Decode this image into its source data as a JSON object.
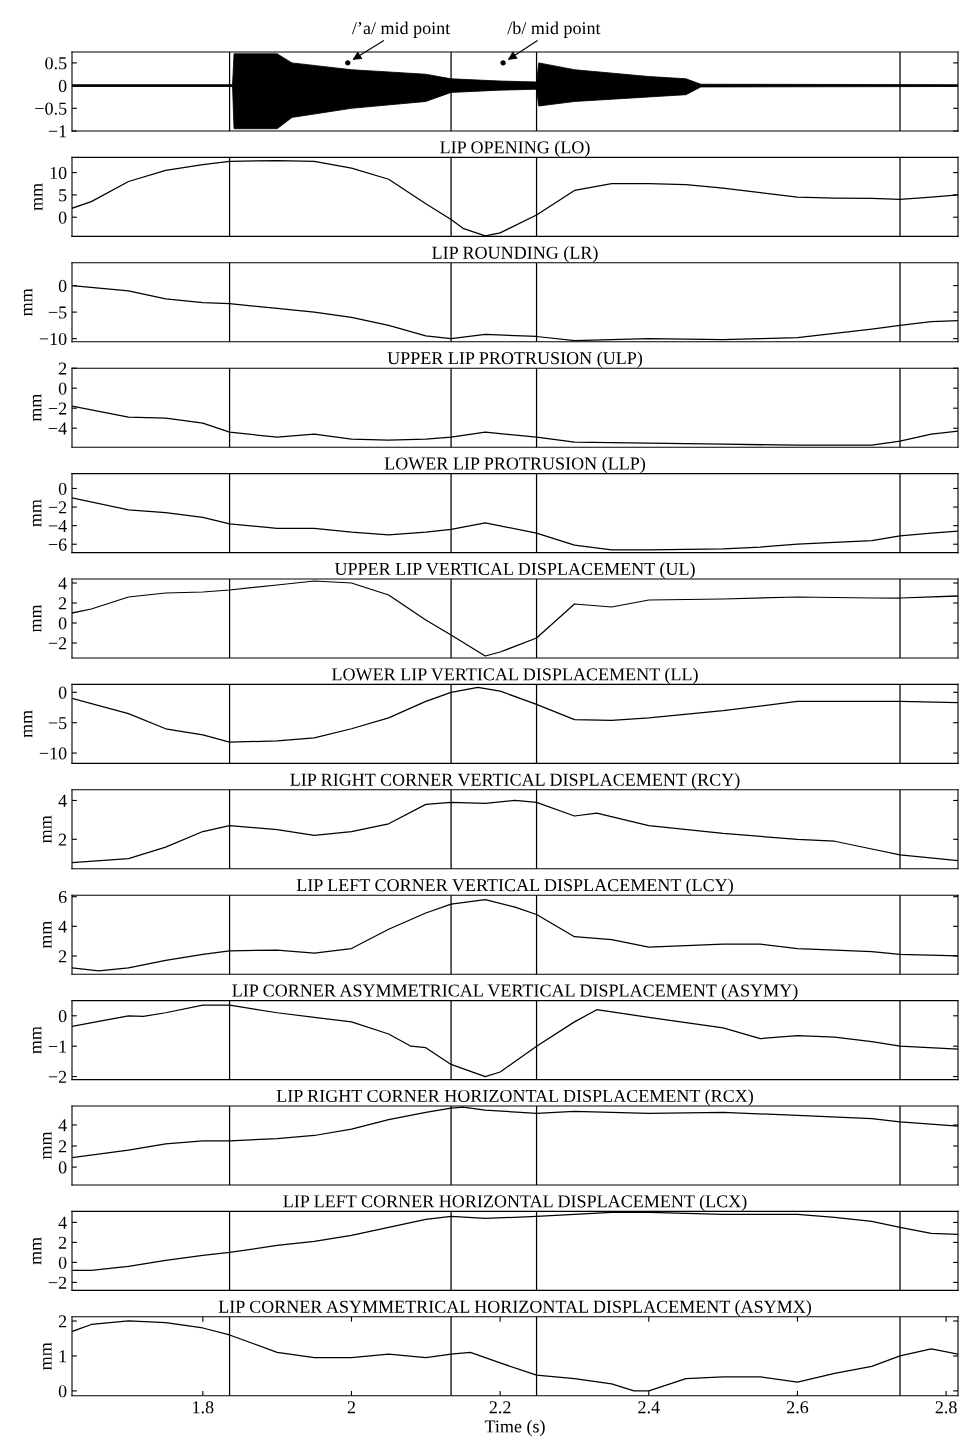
{
  "chart_data": [
    {
      "type": "line",
      "xlim": [
        1.624,
        2.816
      ],
      "ylim": [
        -1,
        0.74
      ],
      "yticks": [
        {
          "value": 0.5,
          "label": "0.5"
        },
        0,
        {
          "value": -0.5,
          "label": "−0.5"
        },
        {
          "value": -1,
          "label": "−1"
        }
      ],
      "tick_labels": "y",
      "grid": false,
      "legend": false,
      "annotations": [
        {
          "text": "/’a/ mid point",
          "x": 1.995,
          "y": 0.5
        },
        {
          "text": "/b/ mid point",
          "x": 2.204,
          "y": 0.5
        }
      ],
      "ref_lines": [
        {
          "axis": "x",
          "value": 1.836,
          "color": "#000000"
        },
        {
          "axis": "x",
          "value": 2.134,
          "color": "#000000"
        },
        {
          "axis": "x",
          "value": 2.249,
          "color": "#000000"
        },
        {
          "axis": "x",
          "value": 2.738,
          "color": "#000000"
        }
      ],
      "series": [
        {
          "type": "line",
          "color": "#000000",
          "x": [
            1.624,
            1.84,
            1.842,
            1.9,
            1.92,
            2.0,
            2.1,
            2.134,
            2.2,
            2.249,
            2.252,
            2.3,
            2.4,
            2.45,
            2.47,
            2.816
          ],
          "values": [
            0,
            0,
            0,
            0,
            0,
            0,
            0,
            0,
            0,
            0,
            0,
            0,
            0,
            0,
            0,
            0
          ],
          "lower": [
            -0.02,
            -0.02,
            -0.95,
            -0.95,
            -0.7,
            -0.5,
            -0.35,
            -0.15,
            -0.1,
            -0.08,
            -0.45,
            -0.35,
            -0.25,
            -0.2,
            -0.03,
            -0.02
          ],
          "upper": [
            0.02,
            0.02,
            0.7,
            0.7,
            0.5,
            0.35,
            0.25,
            0.15,
            0.1,
            0.08,
            0.5,
            0.35,
            0.2,
            0.15,
            0.03,
            0.02
          ]
        },
        {
          "type": "scatter",
          "color": "#000000",
          "x": [
            1.995,
            2.204
          ],
          "values": [
            0.5,
            0.5
          ]
        }
      ]
    },
    {
      "type": "line",
      "title": "LIP OPENING (LO)",
      "ylabel": "mm",
      "xlim": [
        1.624,
        2.816
      ],
      "ylim": [
        -4.3,
        13.4
      ],
      "yticks": [
        10,
        5,
        0
      ],
      "tick_labels": "y",
      "grid": false,
      "legend": false,
      "ref_lines": [
        {
          "axis": "x",
          "value": 1.836,
          "color": "#000000"
        },
        {
          "axis": "x",
          "value": 2.134,
          "color": "#000000"
        },
        {
          "axis": "x",
          "value": 2.249,
          "color": "#000000"
        },
        {
          "axis": "x",
          "value": 2.738,
          "color": "#000000"
        }
      ],
      "series": [
        {
          "type": "line",
          "color": "#000000",
          "x": [
            1.624,
            1.65,
            1.7,
            1.75,
            1.8,
            1.836,
            1.9,
            1.95,
            2.0,
            2.05,
            2.1,
            2.134,
            2.15,
            2.18,
            2.2,
            2.249,
            2.3,
            2.35,
            2.4,
            2.45,
            2.5,
            2.55,
            2.6,
            2.65,
            2.7,
            2.738,
            2.78,
            2.816
          ],
          "values": [
            2,
            3.5,
            8,
            10.5,
            11.8,
            12.5,
            12.7,
            12.5,
            11,
            8.5,
            3,
            -0.5,
            -2.5,
            -4.2,
            -3.5,
            0.5,
            6,
            7.5,
            7.5,
            7.3,
            6.5,
            5.5,
            4.5,
            4.3,
            4.2,
            4,
            4.5,
            5
          ]
        }
      ]
    },
    {
      "type": "line",
      "title": "LIP ROUNDING (LR)",
      "ylabel": "mm",
      "xlim": [
        1.624,
        2.816
      ],
      "ylim": [
        -10.6,
        4.3
      ],
      "yticks": [
        0,
        {
          "value": -5,
          "label": "−5"
        },
        {
          "value": -10,
          "label": "−10"
        }
      ],
      "tick_labels": "y",
      "grid": false,
      "legend": false,
      "ref_lines": [
        {
          "axis": "x",
          "value": 1.836,
          "color": "#000000"
        },
        {
          "axis": "x",
          "value": 2.134,
          "color": "#000000"
        },
        {
          "axis": "x",
          "value": 2.249,
          "color": "#000000"
        },
        {
          "axis": "x",
          "value": 2.738,
          "color": "#000000"
        }
      ],
      "series": [
        {
          "type": "line",
          "color": "#000000",
          "x": [
            1.624,
            1.7,
            1.75,
            1.8,
            1.836,
            1.9,
            1.95,
            2.0,
            2.05,
            2.1,
            2.134,
            2.18,
            2.249,
            2.3,
            2.4,
            2.5,
            2.55,
            2.6,
            2.65,
            2.7,
            2.738,
            2.78,
            2.816
          ],
          "values": [
            0,
            -1,
            -2.5,
            -3.2,
            -3.4,
            -4.3,
            -5,
            -6,
            -7.5,
            -9.5,
            -10,
            -9.2,
            -9.6,
            -10.4,
            -10,
            -10.2,
            -10,
            -9.8,
            -9,
            -8.2,
            -7.5,
            -6.8,
            -6.6
          ]
        }
      ]
    },
    {
      "type": "line",
      "title": "UPPER LIP PROTRUSION (ULP)",
      "ylabel": "mm",
      "xlim": [
        1.624,
        2.816
      ],
      "ylim": [
        -5.9,
        2
      ],
      "yticks": [
        2,
        0,
        {
          "value": -2,
          "label": "−2"
        },
        {
          "value": -4,
          "label": "−4"
        }
      ],
      "tick_labels": "y",
      "grid": false,
      "legend": false,
      "ref_lines": [
        {
          "axis": "x",
          "value": 1.836,
          "color": "#000000"
        },
        {
          "axis": "x",
          "value": 2.134,
          "color": "#000000"
        },
        {
          "axis": "x",
          "value": 2.249,
          "color": "#000000"
        },
        {
          "axis": "x",
          "value": 2.738,
          "color": "#000000"
        }
      ],
      "series": [
        {
          "type": "line",
          "color": "#000000",
          "x": [
            1.624,
            1.7,
            1.75,
            1.8,
            1.836,
            1.9,
            1.95,
            2.0,
            2.05,
            2.1,
            2.134,
            2.18,
            2.249,
            2.3,
            2.4,
            2.5,
            2.6,
            2.7,
            2.738,
            2.78,
            2.816
          ],
          "values": [
            -1.8,
            -2.9,
            -3,
            -3.5,
            -4.4,
            -4.9,
            -4.6,
            -5.1,
            -5.2,
            -5.1,
            -4.9,
            -4.4,
            -4.9,
            -5.4,
            -5.5,
            -5.6,
            -5.7,
            -5.7,
            -5.3,
            -4.6,
            -4.3
          ]
        }
      ]
    },
    {
      "type": "line",
      "title": "LOWER LIP PROTRUSION (LLP)",
      "ylabel": "mm",
      "xlim": [
        1.624,
        2.816
      ],
      "ylim": [
        -6.9,
        1.6
      ],
      "yticks": [
        0,
        {
          "value": -2,
          "label": "−2"
        },
        {
          "value": -4,
          "label": "−4"
        },
        {
          "value": -6,
          "label": "−6"
        }
      ],
      "tick_labels": "y",
      "grid": false,
      "legend": false,
      "ref_lines": [
        {
          "axis": "x",
          "value": 1.836,
          "color": "#000000"
        },
        {
          "axis": "x",
          "value": 2.134,
          "color": "#000000"
        },
        {
          "axis": "x",
          "value": 2.249,
          "color": "#000000"
        },
        {
          "axis": "x",
          "value": 2.738,
          "color": "#000000"
        }
      ],
      "series": [
        {
          "type": "line",
          "color": "#000000",
          "x": [
            1.624,
            1.7,
            1.75,
            1.8,
            1.836,
            1.9,
            1.95,
            2.0,
            2.05,
            2.1,
            2.134,
            2.18,
            2.249,
            2.3,
            2.35,
            2.4,
            2.5,
            2.55,
            2.6,
            2.7,
            2.738,
            2.78,
            2.816
          ],
          "values": [
            -1,
            -2.3,
            -2.6,
            -3.1,
            -3.8,
            -4.3,
            -4.3,
            -4.7,
            -5,
            -4.7,
            -4.4,
            -3.7,
            -4.8,
            -6.1,
            -6.6,
            -6.6,
            -6.5,
            -6.3,
            -6,
            -5.6,
            -5.1,
            -4.8,
            -4.6
          ]
        }
      ]
    },
    {
      "type": "line",
      "title": "UPPER LIP VERTICAL DISPLACEMENT (UL)",
      "ylabel": "mm",
      "xlim": [
        1.624,
        2.816
      ],
      "ylim": [
        -3.5,
        4.4
      ],
      "yticks": [
        4,
        2,
        0,
        {
          "value": -2,
          "label": "−2"
        }
      ],
      "tick_labels": "y",
      "grid": false,
      "legend": false,
      "ref_lines": [
        {
          "axis": "x",
          "value": 1.836,
          "color": "#000000"
        },
        {
          "axis": "x",
          "value": 2.134,
          "color": "#000000"
        },
        {
          "axis": "x",
          "value": 2.249,
          "color": "#000000"
        },
        {
          "axis": "x",
          "value": 2.738,
          "color": "#000000"
        }
      ],
      "series": [
        {
          "type": "line",
          "color": "#000000",
          "x": [
            1.624,
            1.65,
            1.7,
            1.75,
            1.8,
            1.836,
            1.9,
            1.95,
            2.0,
            2.05,
            2.1,
            2.134,
            2.18,
            2.2,
            2.249,
            2.3,
            2.35,
            2.4,
            2.5,
            2.6,
            2.7,
            2.738,
            2.816
          ],
          "values": [
            1,
            1.4,
            2.6,
            3,
            3.1,
            3.3,
            3.8,
            4.2,
            4,
            2.8,
            0.3,
            -1.2,
            -3.3,
            -2.9,
            -1.5,
            1.9,
            1.6,
            2.3,
            2.4,
            2.6,
            2.5,
            2.5,
            2.7
          ]
        }
      ]
    },
    {
      "type": "line",
      "title": "LOWER LIP VERTICAL DISPLACEMENT (LL)",
      "ylabel": "mm",
      "xlim": [
        1.624,
        2.816
      ],
      "ylim": [
        -11.7,
        1.3
      ],
      "yticks": [
        0,
        {
          "value": -5,
          "label": "−5"
        },
        {
          "value": -10,
          "label": "−10"
        }
      ],
      "tick_labels": "y",
      "grid": false,
      "legend": false,
      "ref_lines": [
        {
          "axis": "x",
          "value": 1.836,
          "color": "#000000"
        },
        {
          "axis": "x",
          "value": 2.134,
          "color": "#000000"
        },
        {
          "axis": "x",
          "value": 2.249,
          "color": "#000000"
        },
        {
          "axis": "x",
          "value": 2.738,
          "color": "#000000"
        }
      ],
      "series": [
        {
          "type": "line",
          "color": "#000000",
          "x": [
            1.624,
            1.7,
            1.75,
            1.8,
            1.836,
            1.9,
            1.95,
            2.0,
            2.05,
            2.1,
            2.134,
            2.17,
            2.2,
            2.249,
            2.3,
            2.35,
            2.4,
            2.5,
            2.6,
            2.65,
            2.738,
            2.816
          ],
          "values": [
            -1,
            -3.5,
            -6,
            -7,
            -8.2,
            -8,
            -7.5,
            -6,
            -4.2,
            -1.5,
            0,
            0.8,
            0.2,
            -2,
            -4.5,
            -4.6,
            -4.2,
            -3,
            -1.5,
            -1.5,
            -1.5,
            -1.7
          ]
        }
      ]
    },
    {
      "type": "line",
      "title": "LIP RIGHT CORNER VERTICAL DISPLACEMENT (RCY)",
      "ylabel": "mm",
      "xlim": [
        1.624,
        2.816
      ],
      "ylim": [
        0.48,
        4.55
      ],
      "yticks": [
        4,
        2
      ],
      "tick_labels": "y",
      "grid": false,
      "legend": false,
      "ref_lines": [
        {
          "axis": "x",
          "value": 1.836,
          "color": "#000000"
        },
        {
          "axis": "x",
          "value": 2.134,
          "color": "#000000"
        },
        {
          "axis": "x",
          "value": 2.249,
          "color": "#000000"
        },
        {
          "axis": "x",
          "value": 2.738,
          "color": "#000000"
        }
      ],
      "series": [
        {
          "type": "line",
          "color": "#000000",
          "x": [
            1.624,
            1.7,
            1.75,
            1.8,
            1.836,
            1.9,
            1.95,
            2.0,
            2.05,
            2.1,
            2.134,
            2.18,
            2.22,
            2.249,
            2.3,
            2.33,
            2.4,
            2.5,
            2.6,
            2.65,
            2.7,
            2.738,
            2.816
          ],
          "values": [
            0.8,
            1,
            1.6,
            2.4,
            2.7,
            2.5,
            2.2,
            2.4,
            2.8,
            3.8,
            3.9,
            3.85,
            4,
            3.9,
            3.2,
            3.35,
            2.7,
            2.3,
            2,
            1.9,
            1.5,
            1.2,
            0.9
          ]
        }
      ]
    },
    {
      "type": "line",
      "title": "LIP LEFT CORNER VERTICAL DISPLACEMENT (LCY)",
      "ylabel": "mm",
      "xlim": [
        1.624,
        2.816
      ],
      "ylim": [
        0.77,
        6.1
      ],
      "yticks": [
        6,
        4,
        2
      ],
      "tick_labels": "y",
      "grid": false,
      "legend": false,
      "ref_lines": [
        {
          "axis": "x",
          "value": 1.836,
          "color": "#000000"
        },
        {
          "axis": "x",
          "value": 2.134,
          "color": "#000000"
        },
        {
          "axis": "x",
          "value": 2.249,
          "color": "#000000"
        },
        {
          "axis": "x",
          "value": 2.738,
          "color": "#000000"
        }
      ],
      "series": [
        {
          "type": "line",
          "color": "#000000",
          "x": [
            1.624,
            1.66,
            1.7,
            1.75,
            1.8,
            1.836,
            1.9,
            1.95,
            2.0,
            2.05,
            2.1,
            2.134,
            2.18,
            2.22,
            2.249,
            2.3,
            2.35,
            2.4,
            2.5,
            2.55,
            2.6,
            2.7,
            2.738,
            2.816
          ],
          "values": [
            1.2,
            1,
            1.2,
            1.7,
            2.1,
            2.35,
            2.4,
            2.2,
            2.5,
            3.8,
            4.9,
            5.5,
            5.8,
            5.3,
            4.8,
            3.3,
            3.1,
            2.6,
            2.8,
            2.8,
            2.5,
            2.3,
            2.1,
            2
          ]
        }
      ]
    },
    {
      "type": "line",
      "title": "LIP CORNER ASYMMETRICAL VERTICAL DISPLACEMENT (ASYMY)",
      "ylabel": "mm",
      "xlim": [
        1.624,
        2.816
      ],
      "ylim": [
        -2.1,
        0.5
      ],
      "yticks": [
        0,
        {
          "value": -1,
          "label": "−1"
        },
        {
          "value": -2,
          "label": "−2"
        }
      ],
      "tick_labels": "y",
      "grid": false,
      "legend": false,
      "ref_lines": [
        {
          "axis": "x",
          "value": 1.836,
          "color": "#000000"
        },
        {
          "axis": "x",
          "value": 2.134,
          "color": "#000000"
        },
        {
          "axis": "x",
          "value": 2.249,
          "color": "#000000"
        },
        {
          "axis": "x",
          "value": 2.738,
          "color": "#000000"
        }
      ],
      "series": [
        {
          "type": "line",
          "color": "#000000",
          "x": [
            1.624,
            1.7,
            1.72,
            1.75,
            1.8,
            1.836,
            1.9,
            1.95,
            2.0,
            2.05,
            2.08,
            2.1,
            2.134,
            2.18,
            2.2,
            2.249,
            2.3,
            2.33,
            2.4,
            2.5,
            2.55,
            2.6,
            2.65,
            2.7,
            2.738,
            2.816
          ],
          "values": [
            -0.35,
            0,
            -0.02,
            0.1,
            0.35,
            0.35,
            0.1,
            -0.05,
            -0.2,
            -0.6,
            -1,
            -1.05,
            -1.6,
            -2,
            -1.85,
            -1,
            -0.2,
            0.2,
            -0.05,
            -0.4,
            -0.75,
            -0.65,
            -0.7,
            -0.85,
            -1,
            -1.1
          ]
        }
      ]
    },
    {
      "type": "line",
      "title": "LIP RIGHT CORNER HORIZONTAL DISPLACEMENT (RCX)",
      "ylabel": "mm",
      "xlim": [
        1.624,
        2.816
      ],
      "ylim": [
        -1.7,
        5.8
      ],
      "yticks": [
        4,
        2,
        0
      ],
      "tick_labels": "y",
      "grid": false,
      "legend": false,
      "ref_lines": [
        {
          "axis": "x",
          "value": 1.836,
          "color": "#000000"
        },
        {
          "axis": "x",
          "value": 2.134,
          "color": "#000000"
        },
        {
          "axis": "x",
          "value": 2.249,
          "color": "#000000"
        },
        {
          "axis": "x",
          "value": 2.738,
          "color": "#000000"
        }
      ],
      "series": [
        {
          "type": "line",
          "color": "#000000",
          "x": [
            1.624,
            1.7,
            1.75,
            1.8,
            1.836,
            1.9,
            1.95,
            2.0,
            2.05,
            2.1,
            2.134,
            2.15,
            2.18,
            2.249,
            2.3,
            2.35,
            2.4,
            2.5,
            2.6,
            2.7,
            2.738,
            2.816
          ],
          "values": [
            0.9,
            1.6,
            2.2,
            2.5,
            2.5,
            2.7,
            3,
            3.6,
            4.5,
            5.2,
            5.6,
            5.7,
            5.4,
            5.1,
            5.3,
            5.2,
            5.1,
            5.2,
            4.9,
            4.6,
            4.3,
            3.9
          ]
        }
      ]
    },
    {
      "type": "line",
      "title": "LIP LEFT CORNER HORIZONTAL DISPLACEMENT (LCX)",
      "ylabel": "mm",
      "xlim": [
        1.624,
        2.816
      ],
      "ylim": [
        -2.8,
        5.1
      ],
      "yticks": [
        4,
        2,
        0,
        {
          "value": -2,
          "label": "−2"
        }
      ],
      "tick_labels": "y",
      "grid": false,
      "legend": false,
      "ref_lines": [
        {
          "axis": "x",
          "value": 1.836,
          "color": "#000000"
        },
        {
          "axis": "x",
          "value": 2.134,
          "color": "#000000"
        },
        {
          "axis": "x",
          "value": 2.249,
          "color": "#000000"
        },
        {
          "axis": "x",
          "value": 2.738,
          "color": "#000000"
        }
      ],
      "series": [
        {
          "type": "line",
          "color": "#000000",
          "x": [
            1.624,
            1.65,
            1.7,
            1.75,
            1.8,
            1.836,
            1.9,
            1.95,
            2.0,
            2.05,
            2.1,
            2.134,
            2.18,
            2.249,
            2.3,
            2.35,
            2.4,
            2.5,
            2.6,
            2.65,
            2.7,
            2.738,
            2.78,
            2.816
          ],
          "values": [
            -0.8,
            -0.8,
            -0.4,
            0.2,
            0.7,
            1,
            1.7,
            2.1,
            2.7,
            3.5,
            4.3,
            4.6,
            4.4,
            4.6,
            4.8,
            5,
            5,
            4.8,
            4.8,
            4.5,
            4.1,
            3.5,
            2.9,
            2.8
          ]
        }
      ]
    },
    {
      "type": "line",
      "title": "LIP CORNER ASYMMETRICAL HORIZONTAL DISPLACEMENT (ASYMX)",
      "ylabel": "mm",
      "xlabel": "Time (s)",
      "xlim": [
        1.624,
        2.816
      ],
      "ylim": [
        -0.14,
        2.12
      ],
      "xticks": [
        1.8,
        2,
        2.2,
        2.4,
        2.6,
        2.8
      ],
      "yticks": [
        2,
        1,
        0
      ],
      "grid": false,
      "legend": false,
      "ref_lines": [
        {
          "axis": "x",
          "value": 1.836,
          "color": "#000000"
        },
        {
          "axis": "x",
          "value": 2.134,
          "color": "#000000"
        },
        {
          "axis": "x",
          "value": 2.249,
          "color": "#000000"
        },
        {
          "axis": "x",
          "value": 2.738,
          "color": "#000000"
        }
      ],
      "series": [
        {
          "type": "line",
          "color": "#000000",
          "x": [
            1.624,
            1.65,
            1.7,
            1.75,
            1.8,
            1.836,
            1.9,
            1.95,
            2.0,
            2.05,
            2.1,
            2.134,
            2.16,
            2.2,
            2.249,
            2.3,
            2.35,
            2.38,
            2.4,
            2.45,
            2.5,
            2.55,
            2.6,
            2.65,
            2.7,
            2.738,
            2.78,
            2.816
          ],
          "values": [
            1.7,
            1.9,
            2,
            1.95,
            1.8,
            1.6,
            1.1,
            0.95,
            0.95,
            1.05,
            0.95,
            1.05,
            1.1,
            0.8,
            0.45,
            0.35,
            0.2,
            0,
            0,
            0.35,
            0.4,
            0.4,
            0.25,
            0.5,
            0.7,
            1,
            1.2,
            1.05
          ]
        }
      ]
    }
  ]
}
